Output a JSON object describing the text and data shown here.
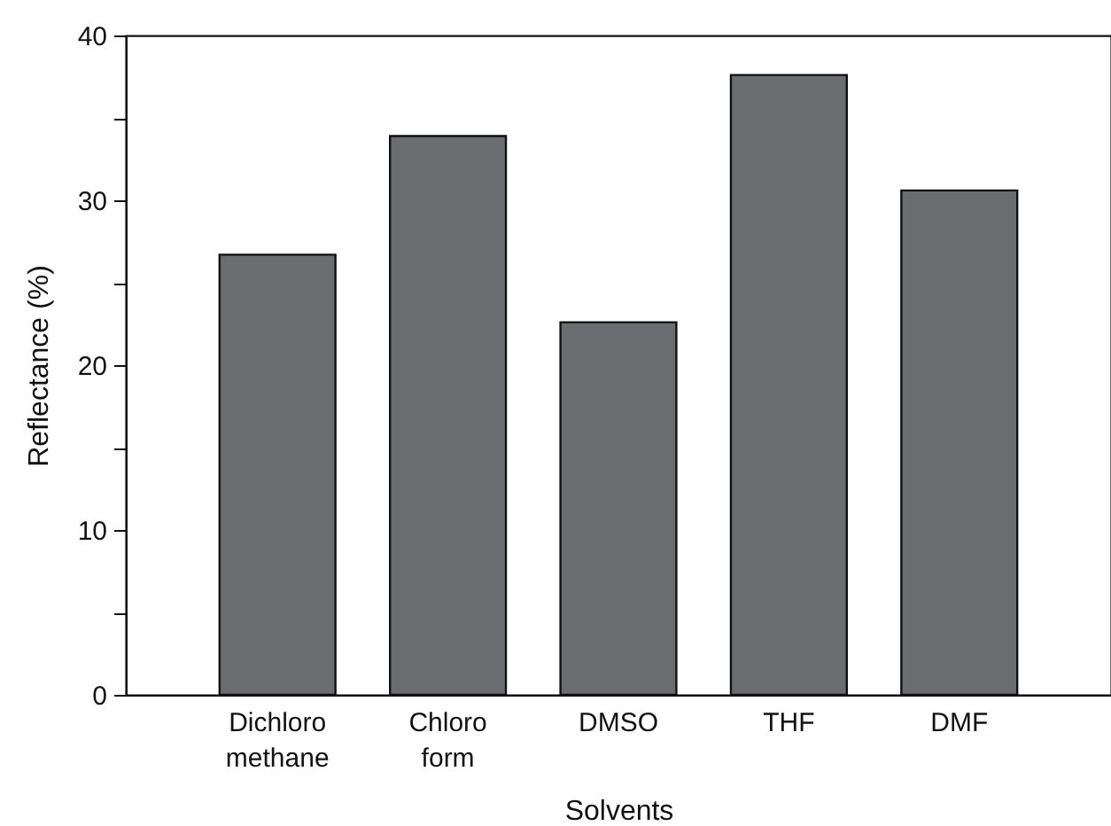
{
  "chart_data": {
    "type": "bar",
    "xlabel": "Solvents",
    "ylabel": "Reflectance (%)",
    "categories": [
      "Dichloro\nmethane",
      "Chloro\nform",
      "DMSO",
      "THF",
      "DMF"
    ],
    "values": [
      26.7,
      33.9,
      22.6,
      37.6,
      30.6
    ],
    "color": "#6b6c70",
    "ylim": [
      0,
      40
    ],
    "yticks": [
      0,
      {
        "value": 5,
        "label": null
      },
      10,
      {
        "value": 15,
        "label": null
      },
      20,
      {
        "value": 25,
        "label": null
      },
      30,
      {
        "value": 35,
        "label": null
      },
      40
    ],
    "grid": false
  }
}
